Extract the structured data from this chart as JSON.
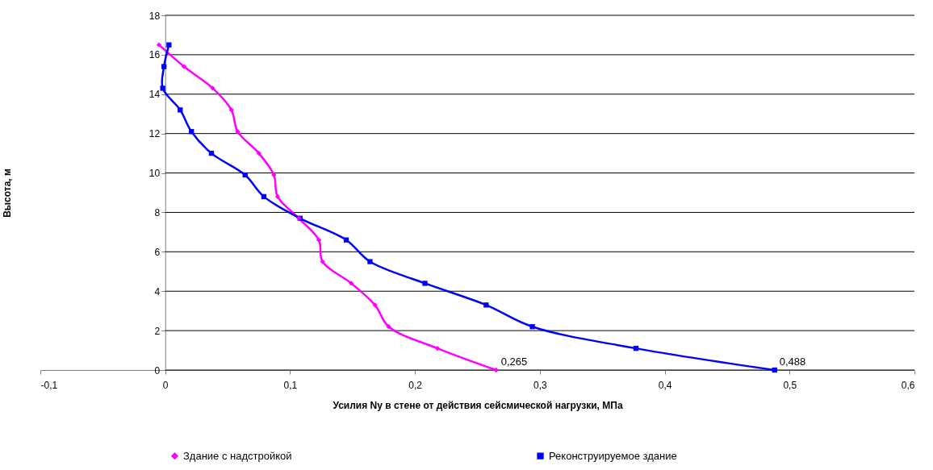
{
  "chart_data": {
    "type": "line",
    "xlabel": "Усилия Ny в стене от действия сейсмической нагрузки, МПа",
    "ylabel": "Высота, м",
    "series": [
      {
        "name": "Здание с надстройкой",
        "color": "#ff00ff",
        "marker": "diamond",
        "x": [
          0.265,
          0.218,
          0.179,
          0.168,
          0.149,
          0.126,
          0.123,
          0.107,
          0.09,
          0.087,
          0.075,
          0.058,
          0.053,
          0.038,
          0.015,
          -0.005
        ],
        "values": [
          0,
          1.1,
          2.2,
          3.3,
          4.4,
          5.5,
          6.6,
          7.7,
          8.8,
          9.9,
          11,
          12.1,
          13.2,
          14.3,
          15.4,
          16.5
        ]
      },
      {
        "name": "Реконструируемое здание",
        "color": "#0000ff",
        "marker": "square",
        "x": [
          0.488,
          0.377,
          0.294,
          0.257,
          0.208,
          0.164,
          0.145,
          0.108,
          0.079,
          0.064,
          0.037,
          0.021,
          0.012,
          -0.002,
          -0.001,
          0.003
        ],
        "values": [
          0,
          1.1,
          2.2,
          3.3,
          4.4,
          5.5,
          6.6,
          7.7,
          8.8,
          9.9,
          11,
          12.1,
          13.2,
          14.3,
          15.4,
          16.5
        ]
      }
    ],
    "xlim": [
      -0.1,
      0.6
    ],
    "xticks": [
      {
        "value": -0.1,
        "label": "-0,1"
      },
      0,
      {
        "value": 0.1,
        "label": "0,1"
      },
      {
        "value": 0.2,
        "label": "0,2"
      },
      {
        "value": 0.3,
        "label": "0,3"
      },
      {
        "value": 0.4,
        "label": "0,4"
      },
      {
        "value": 0.5,
        "label": "0,5"
      },
      {
        "value": 0.6,
        "label": "0,6"
      }
    ],
    "ylim": [
      0,
      18
    ],
    "yticks": [
      0,
      2,
      4,
      6,
      8,
      10,
      12,
      14,
      16,
      18
    ],
    "annotations": [
      {
        "text": "0,265",
        "x": 0.265,
        "y": 0
      },
      {
        "text": "0,488",
        "x": 0.488,
        "y": 0
      }
    ],
    "grid": "y",
    "legend": "bottom",
    "line_style": "solid"
  }
}
